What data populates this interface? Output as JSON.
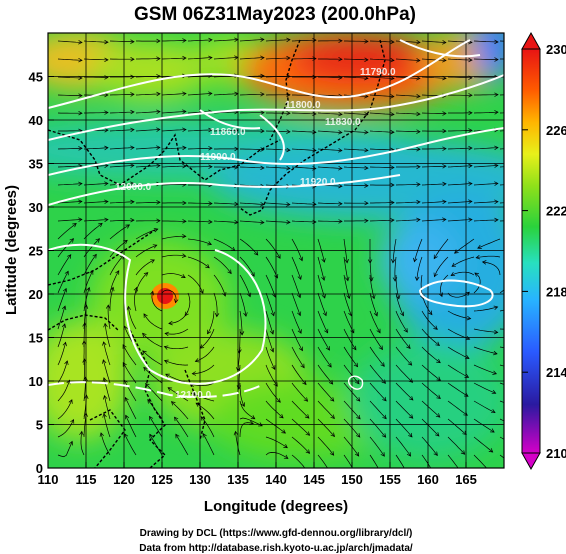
{
  "chart_data": {
    "type": "heatmap",
    "title": "GSM 06Z31May2023 (200.0hPa)",
    "xlabel": "Longitude (degrees)",
    "ylabel": "Latitude (degrees)",
    "xlim": [
      110,
      170
    ],
    "ylim": [
      0,
      50
    ],
    "xticks": [
      110,
      115,
      120,
      125,
      130,
      135,
      140,
      145,
      150,
      155,
      160,
      165
    ],
    "yticks": [
      0,
      5,
      10,
      15,
      20,
      25,
      30,
      35,
      40,
      45
    ],
    "colorbar": {
      "ticks": [
        230,
        226,
        222,
        218,
        214,
        210
      ],
      "range": [
        210,
        230
      ],
      "colors": [
        "#d400c8",
        "#1a1aa8",
        "#2878ff",
        "#28c8ff",
        "#28e89a",
        "#2ad23c",
        "#8ee01a",
        "#e8f01a",
        "#ffb400",
        "#ff5a00",
        "#e81414"
      ]
    },
    "temperature_zones": [
      {
        "lon": 115,
        "lat": 47,
        "value": 226
      },
      {
        "lon": 125,
        "lat": 47,
        "value": 223
      },
      {
        "lon": 147,
        "lat": 46,
        "value": 229
      },
      {
        "lon": 160,
        "lat": 46,
        "value": 226
      },
      {
        "lon": 120,
        "lat": 38,
        "value": 220
      },
      {
        "lon": 150,
        "lat": 37,
        "value": 220
      },
      {
        "lon": 125,
        "lat": 22,
        "value": 229
      },
      {
        "lon": 160,
        "lat": 22,
        "value": 218
      },
      {
        "lon": 140,
        "lat": 10,
        "value": 223
      },
      {
        "lon": 160,
        "lat": 10,
        "value": 222
      }
    ],
    "contour_labels": [
      "11790.0",
      "11800.0",
      "11830.0",
      "11860.0",
      "11900.0",
      "11920.0",
      "12000.0",
      "12100.0"
    ]
  },
  "credits": {
    "line1": "Drawing by DCL (https://www.gfd-dennou.org/library/dcl/)",
    "line2": "Data from http://database.rish.kyoto-u.ac.jp/arch/jmadata/"
  }
}
